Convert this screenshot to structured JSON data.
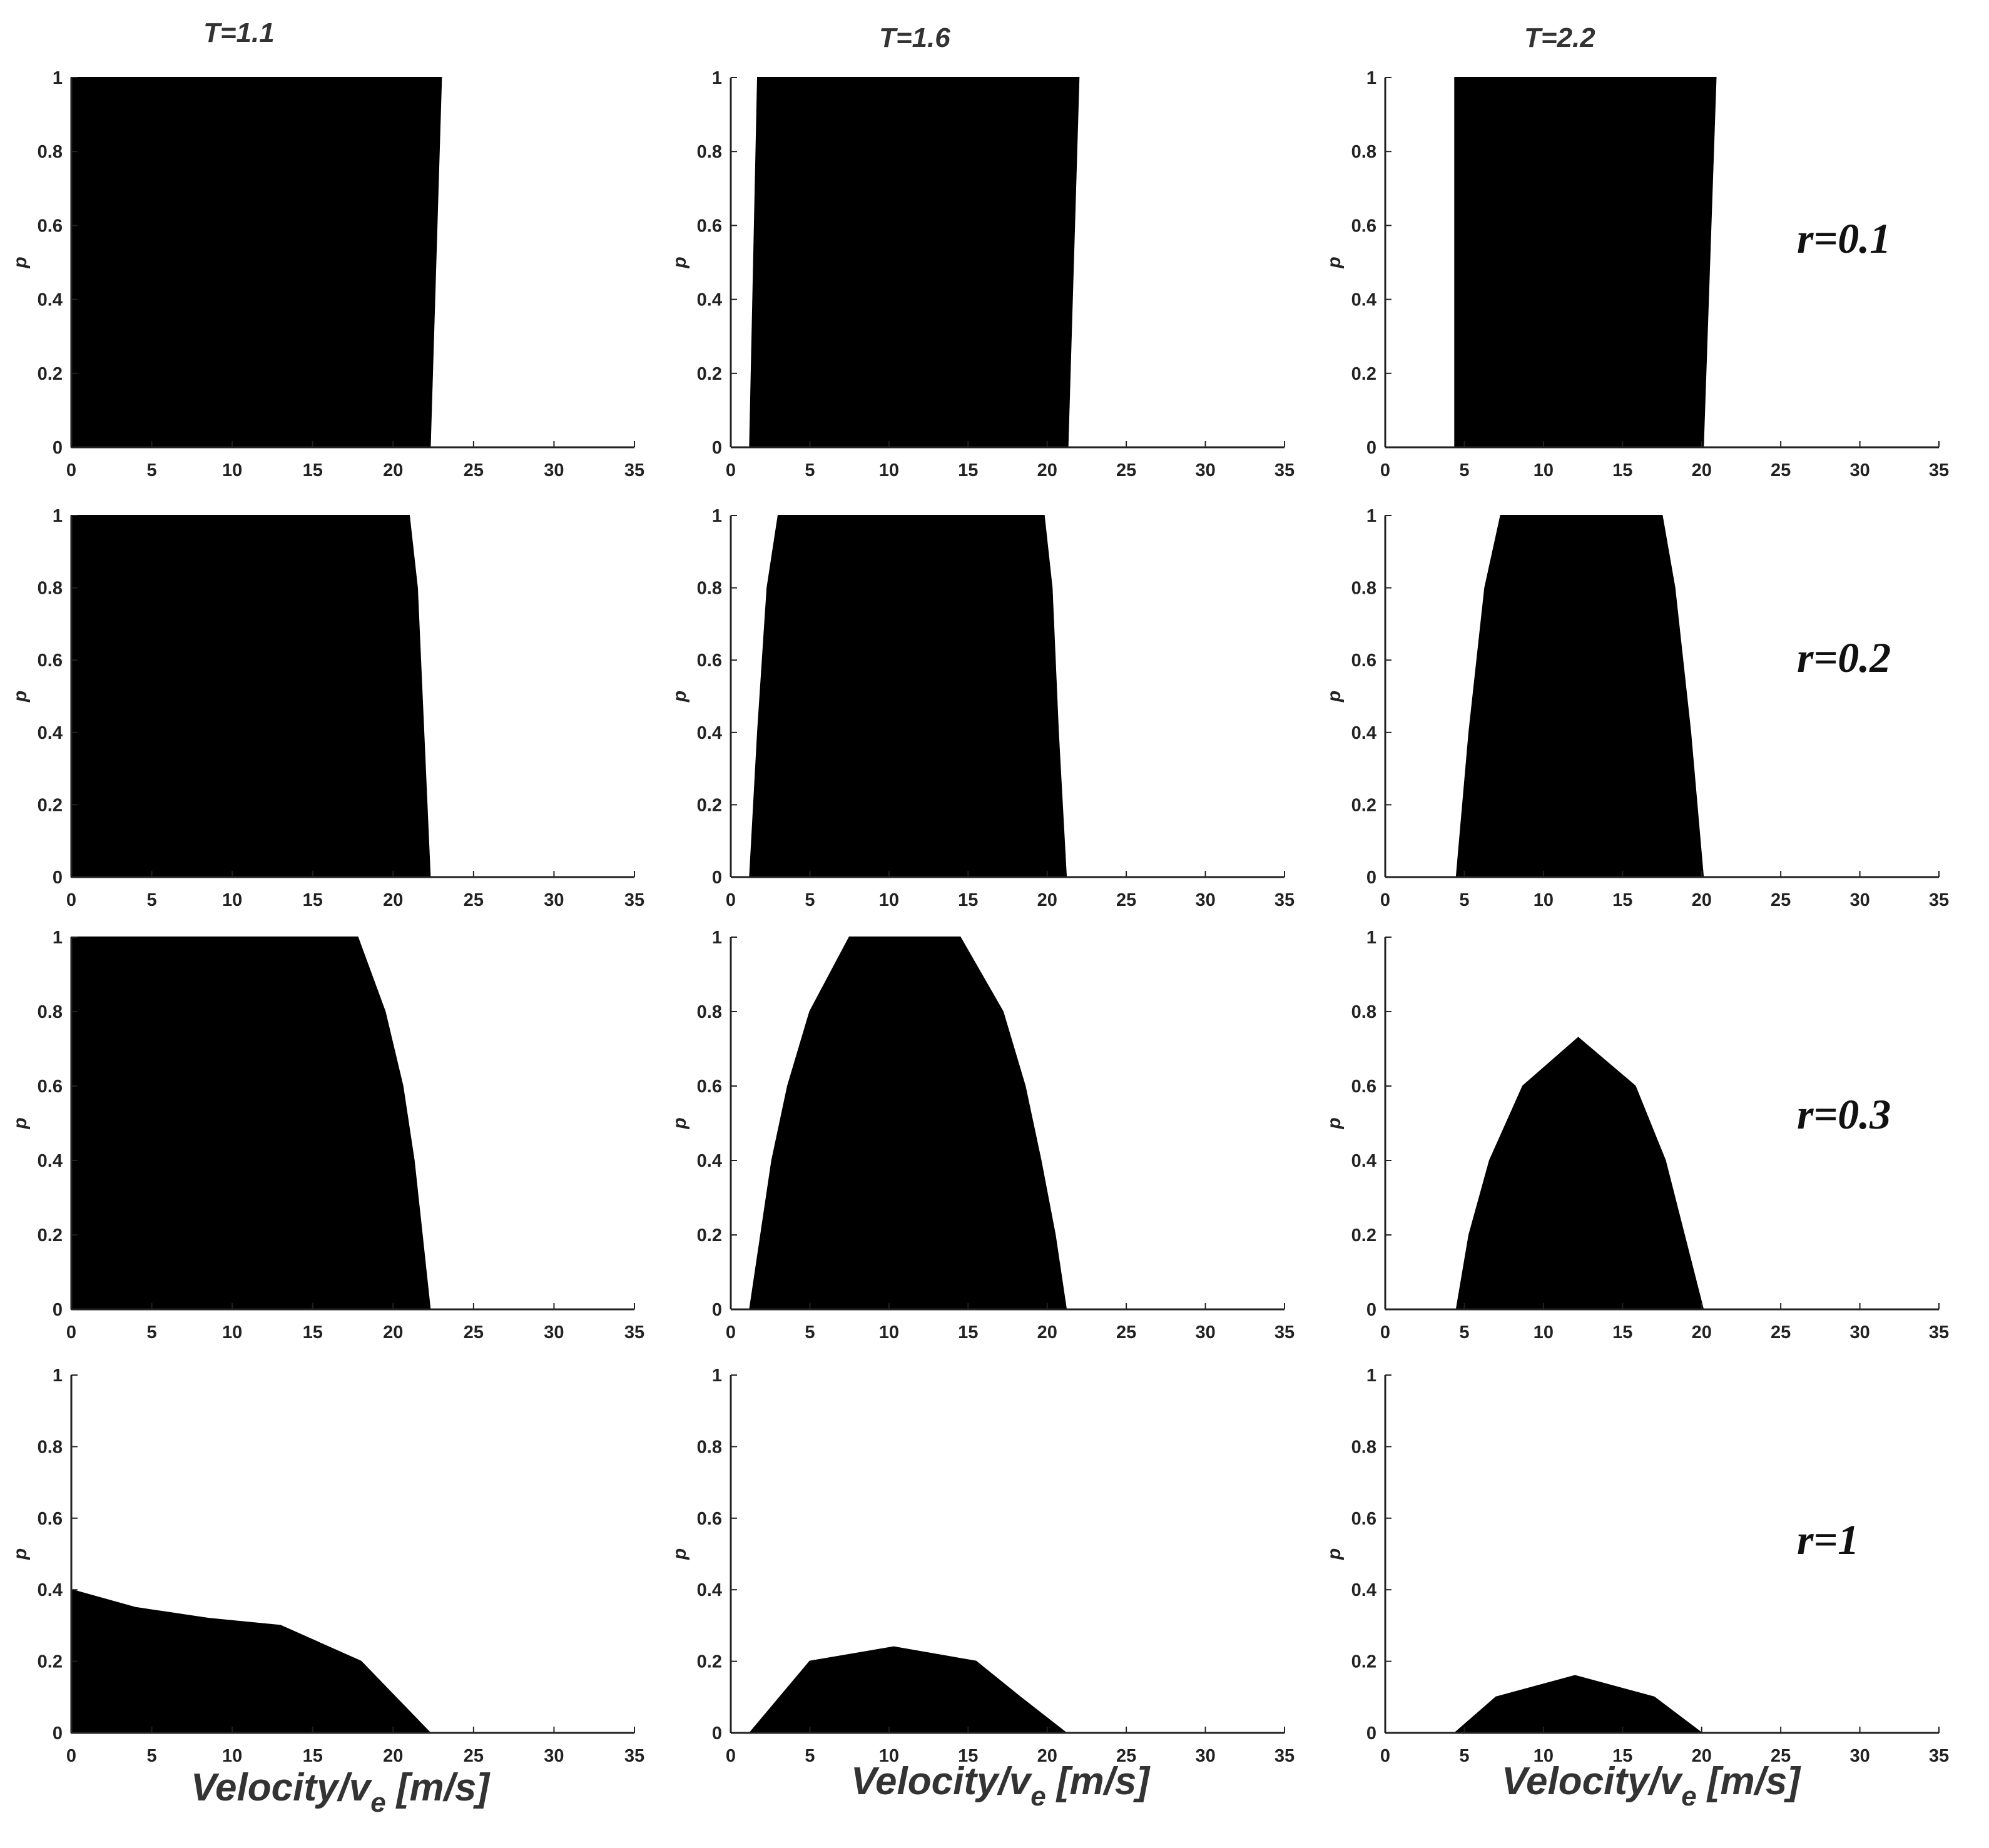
{
  "column_titles": [
    "T=1.1",
    "T=1.6",
    "T=2.2"
  ],
  "row_labels": [
    "r=0.1",
    "r=0.2",
    "r=0.3",
    "r=1"
  ],
  "xlabel": {
    "main": "Velocity/v",
    "sub": "e",
    "unit": " [m/s]"
  },
  "colors": {
    "fill": "#000000",
    "axis": "#222222",
    "tick_text": "#222222"
  },
  "chart_data": [
    {
      "type": "area",
      "ylabel": "p",
      "xlim": [
        0,
        35
      ],
      "ylim": [
        0,
        1
      ],
      "xticks": [
        "0",
        "5",
        "10",
        "15",
        "20",
        "25",
        "30",
        "35"
      ],
      "yticks": [
        "0",
        "0.2",
        "0.4",
        "0.6",
        "0.8",
        "1"
      ],
      "x": [
        0,
        0,
        23,
        22.3,
        35
      ],
      "y": [
        0,
        1,
        1,
        0,
        0
      ]
    },
    {
      "type": "area",
      "ylabel": "p",
      "xlim": [
        0,
        35
      ],
      "ylim": [
        0,
        1
      ],
      "xticks": [
        "0",
        "5",
        "10",
        "15",
        "20",
        "25",
        "30",
        "35"
      ],
      "yticks": [
        "0",
        "0.2",
        "0.4",
        "0.6",
        "0.8",
        "1"
      ],
      "x": [
        0,
        1.2,
        1.7,
        22,
        21.3,
        35
      ],
      "y": [
        0,
        0,
        1,
        1,
        0,
        0
      ]
    },
    {
      "type": "area",
      "ylabel": "p",
      "xlim": [
        0,
        35
      ],
      "ylim": [
        0,
        1
      ],
      "xticks": [
        "0",
        "5",
        "10",
        "15",
        "20",
        "25",
        "30",
        "35"
      ],
      "yticks": [
        "0",
        "0.2",
        "0.4",
        "0.6",
        "0.8",
        "1"
      ],
      "x": [
        0,
        4.4,
        4.4,
        20.9,
        20.1,
        35
      ],
      "y": [
        0,
        0,
        1,
        1,
        0,
        0
      ]
    },
    {
      "type": "area",
      "ylabel": "p",
      "xlim": [
        0,
        35
      ],
      "ylim": [
        0,
        1
      ],
      "xticks": [
        "0",
        "5",
        "10",
        "15",
        "20",
        "25",
        "30",
        "35"
      ],
      "yticks": [
        "0",
        "0.2",
        "0.4",
        "0.6",
        "0.8",
        "1"
      ],
      "x": [
        0,
        0,
        21,
        21.5,
        22.3,
        35
      ],
      "y": [
        0,
        1,
        1,
        0.8,
        0,
        0
      ]
    },
    {
      "type": "area",
      "ylabel": "p",
      "xlim": [
        0,
        35
      ],
      "ylim": [
        0,
        1
      ],
      "xticks": [
        "0",
        "5",
        "10",
        "15",
        "20",
        "25",
        "30",
        "35"
      ],
      "yticks": [
        "0",
        "0.2",
        "0.4",
        "0.6",
        "0.8",
        "1"
      ],
      "x": [
        0,
        1.2,
        1.7,
        2.3,
        3,
        19.8,
        20.3,
        20.7,
        21.2,
        35
      ],
      "y": [
        0,
        0,
        0.4,
        0.8,
        1,
        1,
        0.8,
        0.4,
        0,
        0
      ]
    },
    {
      "type": "area",
      "ylabel": "p",
      "xlim": [
        0,
        35
      ],
      "ylim": [
        0,
        1
      ],
      "xticks": [
        "0",
        "5",
        "10",
        "15",
        "20",
        "25",
        "30",
        "35"
      ],
      "yticks": [
        "0",
        "0.2",
        "0.4",
        "0.6",
        "0.8",
        "1"
      ],
      "x": [
        0,
        4.5,
        5.3,
        6.3,
        7.3,
        17.5,
        18.3,
        19.3,
        20.1,
        35
      ],
      "y": [
        0,
        0,
        0.4,
        0.8,
        1,
        1,
        0.8,
        0.4,
        0,
        0
      ]
    },
    {
      "type": "area",
      "ylabel": "p",
      "xlim": [
        0,
        35
      ],
      "ylim": [
        0,
        1
      ],
      "xticks": [
        "0",
        "5",
        "10",
        "15",
        "20",
        "25",
        "30",
        "35"
      ],
      "yticks": [
        "0",
        "0.2",
        "0.4",
        "0.6",
        "0.8",
        "1"
      ],
      "x": [
        0,
        0,
        17.8,
        19.5,
        20.6,
        21.3,
        21.8,
        22.3,
        35
      ],
      "y": [
        0,
        1,
        1,
        0.8,
        0.6,
        0.4,
        0.2,
        0,
        0
      ]
    },
    {
      "type": "area",
      "ylabel": "p",
      "xlim": [
        0,
        35
      ],
      "ylim": [
        0,
        1
      ],
      "xticks": [
        "0",
        "5",
        "10",
        "15",
        "20",
        "25",
        "30",
        "35"
      ],
      "yticks": [
        "0",
        "0.2",
        "0.4",
        "0.6",
        "0.8",
        "1"
      ],
      "x": [
        0,
        1.2,
        1.9,
        2.6,
        3.6,
        5,
        7.5,
        14.5,
        17.2,
        18.6,
        19.6,
        20.5,
        21.2,
        35
      ],
      "y": [
        0,
        0,
        0.2,
        0.4,
        0.6,
        0.8,
        1,
        1,
        0.8,
        0.6,
        0.4,
        0.2,
        0,
        0
      ]
    },
    {
      "type": "area",
      "ylabel": "p",
      "xlim": [
        0,
        35
      ],
      "ylim": [
        0,
        1
      ],
      "xticks": [
        "0",
        "5",
        "10",
        "15",
        "20",
        "25",
        "30",
        "35"
      ],
      "yticks": [
        "0",
        "0.2",
        "0.4",
        "0.6",
        "0.8",
        "1"
      ],
      "x": [
        0,
        4.5,
        5.3,
        6.6,
        8.7,
        12.2,
        15.8,
        17.7,
        18.9,
        20.1,
        35
      ],
      "y": [
        0,
        0,
        0.2,
        0.4,
        0.6,
        0.73,
        0.6,
        0.4,
        0.2,
        0,
        0
      ]
    },
    {
      "type": "area",
      "ylabel": "p",
      "xlim": [
        0,
        35
      ],
      "ylim": [
        0,
        1
      ],
      "xticks": [
        "0",
        "5",
        "10",
        "15",
        "20",
        "25",
        "30",
        "35"
      ],
      "yticks": [
        "0",
        "0.2",
        "0.4",
        "0.6",
        "0.8",
        "1"
      ],
      "x": [
        0,
        0,
        4,
        8.5,
        13,
        15.5,
        18,
        22.3,
        35
      ],
      "y": [
        0,
        0.4,
        0.35,
        0.32,
        0.3,
        0.25,
        0.2,
        0,
        0
      ]
    },
    {
      "type": "area",
      "ylabel": "p",
      "xlim": [
        0,
        35
      ],
      "ylim": [
        0,
        1
      ],
      "xticks": [
        "0",
        "5",
        "10",
        "15",
        "20",
        "25",
        "30",
        "35"
      ],
      "yticks": [
        "0",
        "0.2",
        "0.4",
        "0.6",
        "0.8",
        "1"
      ],
      "x": [
        0,
        1.2,
        5,
        10.3,
        15.5,
        18.3,
        21.2,
        35
      ],
      "y": [
        0,
        0,
        0.2,
        0.24,
        0.2,
        0.1,
        0,
        0
      ]
    },
    {
      "type": "area",
      "ylabel": "p",
      "xlim": [
        0,
        35
      ],
      "ylim": [
        0,
        1
      ],
      "xticks": [
        "0",
        "5",
        "10",
        "15",
        "20",
        "25",
        "30",
        "35"
      ],
      "yticks": [
        "0",
        "0.2",
        "0.4",
        "0.6",
        "0.8",
        "1"
      ],
      "x": [
        0,
        4.4,
        7,
        12,
        17,
        20,
        35
      ],
      "y": [
        0,
        0,
        0.1,
        0.16,
        0.1,
        0,
        0
      ]
    }
  ]
}
